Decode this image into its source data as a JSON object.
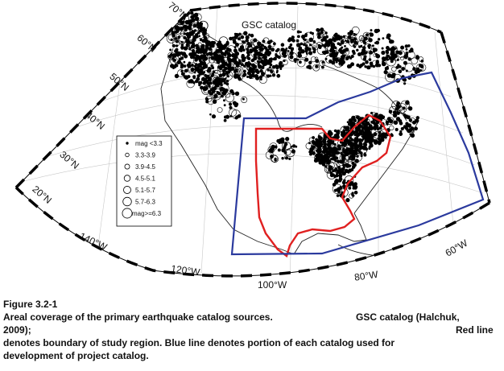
{
  "map": {
    "title": "GSC catalog",
    "latitude_labels": [
      "70°N",
      "60°N",
      "50°N",
      "40°N",
      "30°N",
      "20°N"
    ],
    "longitude_labels": [
      "140°W",
      "120°W",
      "100°W",
      "80°W",
      "60°W"
    ],
    "legend": {
      "entries": [
        {
          "label": "mag <3.3",
          "size": 1
        },
        {
          "label": "3.3-3.9",
          "size": 2
        },
        {
          "label": "3.9-4.5",
          "size": 3
        },
        {
          "label": "4.5-5.1",
          "size": 4
        },
        {
          "label": "5.1-5.7",
          "size": 5
        },
        {
          "label": "5.7-6.3",
          "size": 6
        },
        {
          "label": "mag>=6.3",
          "size": 7
        }
      ]
    },
    "colors": {
      "study_region": "#e02020",
      "catalog_portion": "#2b3a9e",
      "coastline": "#222222",
      "epicenters": "#000000"
    }
  },
  "caption": {
    "figure_label": "Figure 3.2-1",
    "line1_left": "Areal coverage of the primary earthquake catalog sources.",
    "line1_right": "GSC catalog (Halchuk,",
    "line2_left": "2009);",
    "line2_right": "Red line",
    "line3": "denotes boundary of study region. Blue line denotes portion of each catalog used for",
    "line4": "development of project catalog."
  }
}
